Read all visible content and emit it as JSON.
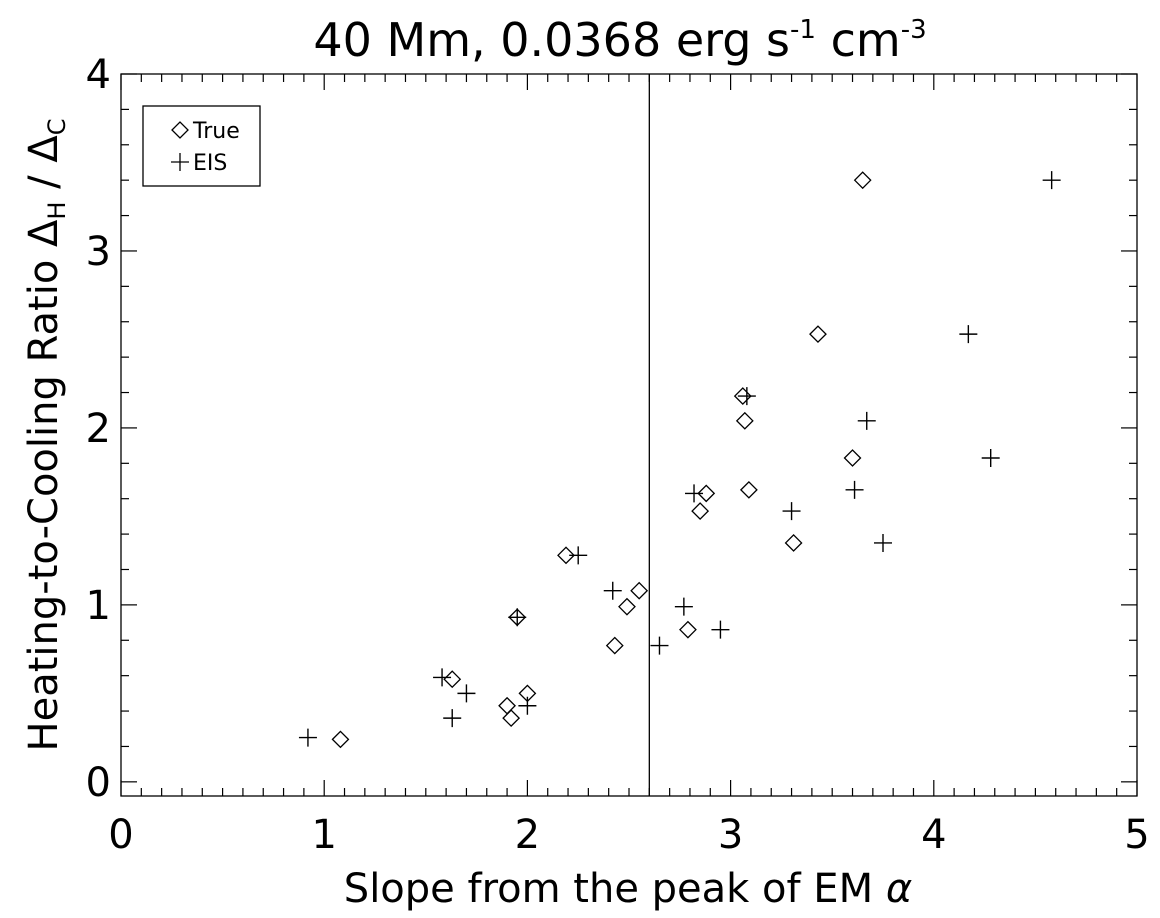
{
  "chart_data": {
    "type": "scatter",
    "title": {
      "main": "40 Mm, 0.0368 erg s",
      "sup1": "-1",
      "mid": " cm",
      "sup2": "-3"
    },
    "xlabel": {
      "text": "Slope from the peak of EM ",
      "symbol": "α"
    },
    "ylabel": {
      "main": "Heating-to-Cooling Ratio Δ",
      "sub1": "H",
      "mid": " / Δ",
      "sub2": "C"
    },
    "xlim": [
      0,
      5
    ],
    "ylim": [
      -0.08,
      4
    ],
    "x_ticks": [
      "0",
      "1",
      "2",
      "3",
      "4",
      "5"
    ],
    "y_ticks": [
      "0",
      "1",
      "2",
      "3",
      "4"
    ],
    "vline_x": 2.6,
    "legend": {
      "position": "top-left",
      "entries": [
        "True",
        "EIS"
      ]
    },
    "series": [
      {
        "name": "True",
        "marker": "diamond",
        "points": [
          [
            1.08,
            0.24
          ],
          [
            1.63,
            0.58
          ],
          [
            1.9,
            0.43
          ],
          [
            1.92,
            0.36
          ],
          [
            2.0,
            0.5
          ],
          [
            1.95,
            0.93
          ],
          [
            2.19,
            1.28
          ],
          [
            2.43,
            0.77
          ],
          [
            2.49,
            0.99
          ],
          [
            2.55,
            1.08
          ],
          [
            2.79,
            0.86
          ],
          [
            2.85,
            1.53
          ],
          [
            2.88,
            1.63
          ],
          [
            3.06,
            2.18
          ],
          [
            3.07,
            2.04
          ],
          [
            3.09,
            1.65
          ],
          [
            3.31,
            1.35
          ],
          [
            3.43,
            2.53
          ],
          [
            3.6,
            1.83
          ],
          [
            3.65,
            3.4
          ]
        ]
      },
      {
        "name": "EIS",
        "marker": "plus",
        "points": [
          [
            0.92,
            0.25
          ],
          [
            1.58,
            0.59
          ],
          [
            1.63,
            0.36
          ],
          [
            1.7,
            0.5
          ],
          [
            2.0,
            0.43
          ],
          [
            1.95,
            0.93
          ],
          [
            2.25,
            1.28
          ],
          [
            2.42,
            1.08
          ],
          [
            2.65,
            0.77
          ],
          [
            2.77,
            0.99
          ],
          [
            2.82,
            1.63
          ],
          [
            2.95,
            0.86
          ],
          [
            3.08,
            2.18
          ],
          [
            3.3,
            1.53
          ],
          [
            3.61,
            1.65
          ],
          [
            3.67,
            2.04
          ],
          [
            3.75,
            1.35
          ],
          [
            4.17,
            2.53
          ],
          [
            4.28,
            1.83
          ],
          [
            4.58,
            3.4
          ]
        ]
      }
    ]
  }
}
